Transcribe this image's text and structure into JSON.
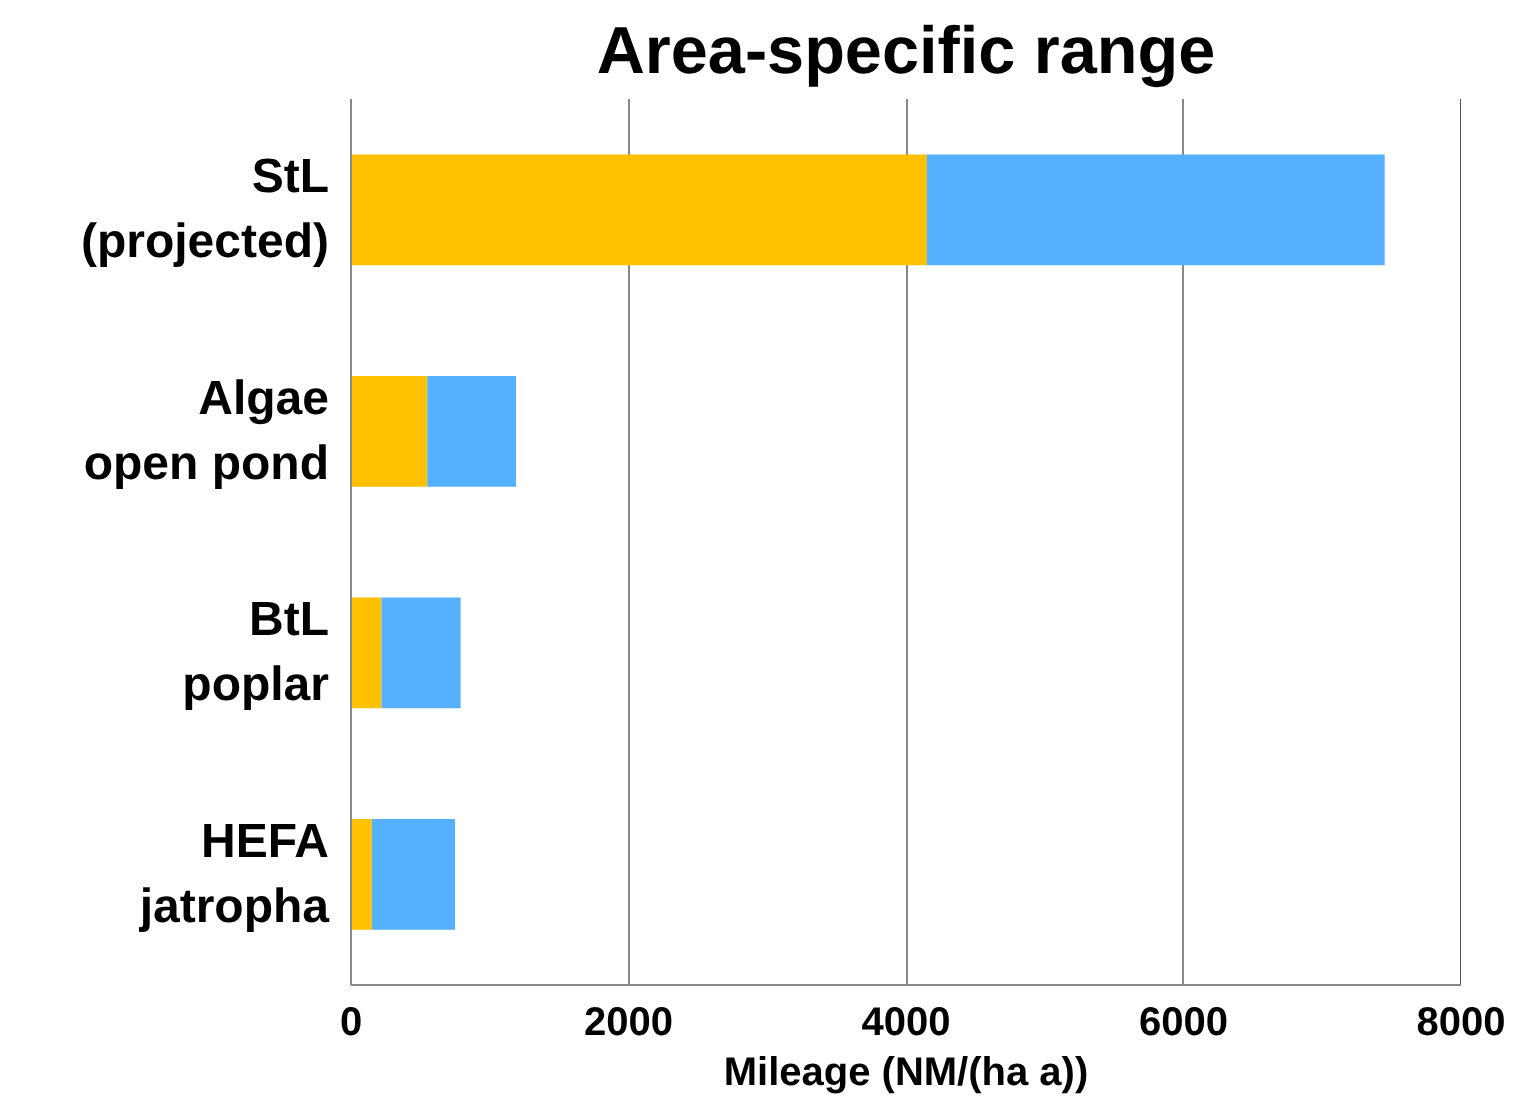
{
  "chart_data": {
    "type": "bar",
    "orientation": "horizontal",
    "stacked": true,
    "title": "Area-specific range",
    "categories": [
      "StL\n(projected)",
      "Algae\nopen pond",
      "BtL\npoplar",
      "HEFA\njatropha"
    ],
    "series": [
      {
        "color": "#ffc000",
        "values": [
          4150,
          550,
          220,
          150
        ]
      },
      {
        "color": "#55b1ff",
        "values": [
          3300,
          640,
          570,
          600
        ]
      }
    ],
    "xlabel": "Mileage (NM/(ha a))",
    "xlim": [
      0,
      8000
    ],
    "xticks": [
      0,
      2000,
      4000,
      6000,
      8000
    ],
    "grid": "x"
  }
}
